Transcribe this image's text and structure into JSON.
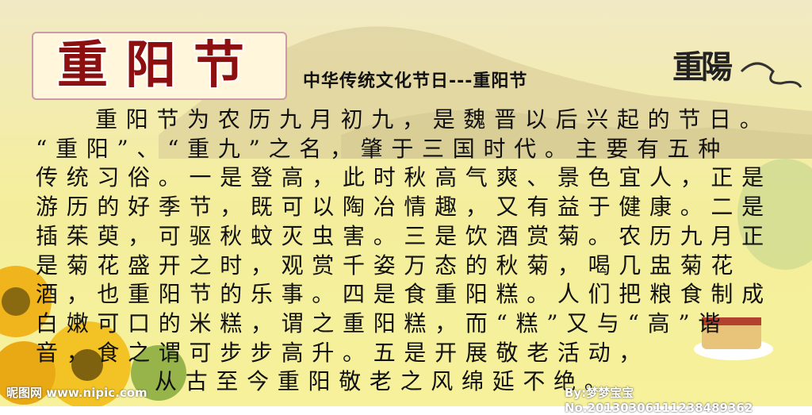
{
  "header": {
    "title": "重阳节",
    "subtitle": "中华传统文化节日---重阳节",
    "calligraphy": "重陽"
  },
  "body": {
    "lines": [
      "重阳节为农历九月初九，是魏晋以后兴起的节日。",
      "“重阳”、“重九”之名，肇于三国时代。主要有五种",
      "传统习俗。一是登高，此时秋高气爽、景色宜人，正是",
      "游历的好季节，既可以陶冶情趣，又有益于健康。二是",
      "插茱萸，可驱秋蚊灭虫害。三是饮酒赏菊。农历九月正",
      "是菊花盛开之时，观赏千姿万态的秋菊，喝几盅菊花",
      "酒，也重阳节的乐事。四是食重阳糕。人们把粮食制成",
      "白嫩可口的米糕，谓之重阳糕，而“糕”又与“高”谐",
      "音，食之谓可步步高升。五是开展敬老活动，",
      "从古至今重阳敬老之风绵延不绝。"
    ]
  },
  "footer": {
    "site": "昵图网 www.nipic.com",
    "credit": "By:梦梦宝宝 No.20130306111238489362"
  }
}
